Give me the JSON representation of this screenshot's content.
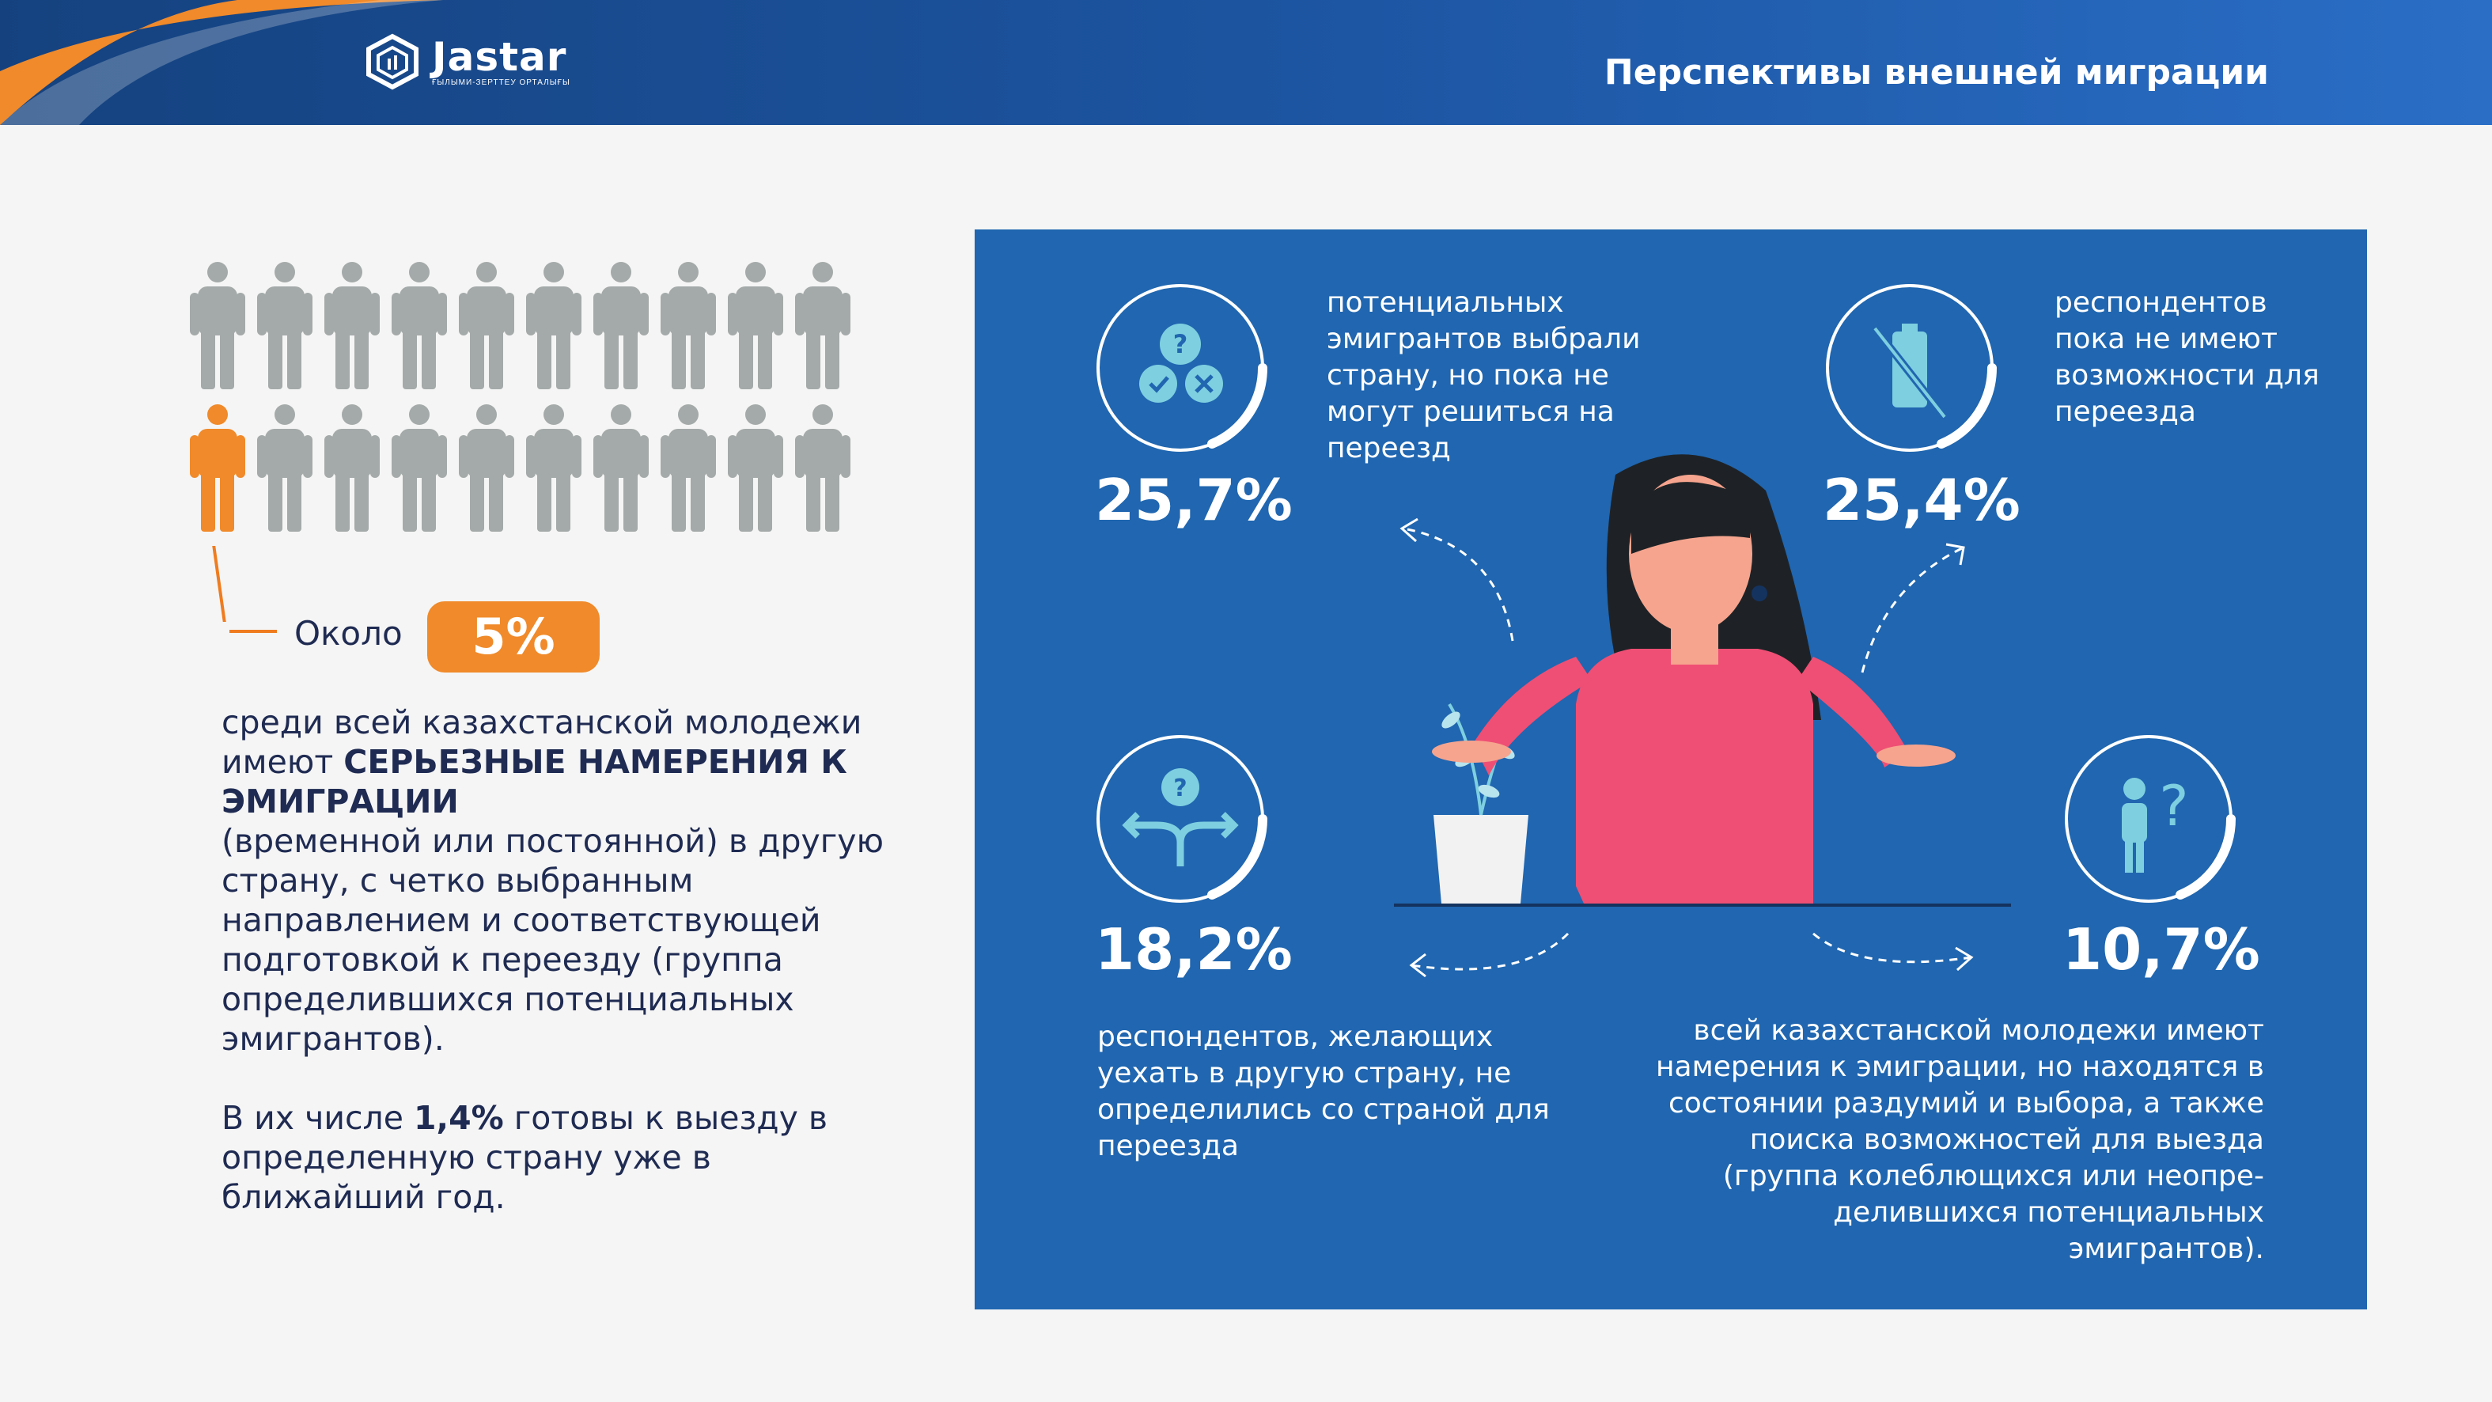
{
  "header": {
    "brand": "Jastar",
    "brand_sub": "ҒЫЛЫМИ-ЗЕРТТЕУ ОРТАЛЫҒЫ",
    "title": "Перспективы внешней миграции"
  },
  "left": {
    "okolo": "Около",
    "badge": "5%",
    "p1_a": "среди всей казахстанской молодежи имеют ",
    "p1_strong": "СЕРЬЕЗНЫЕ НАМЕРЕНИЯ К ЭМИГРАЦИИ",
    "p1_b": "(временной или постоянной) в другую страну, с четко выбранным направлением и соответствующей подготовкой к переезду (группа определившихся потенциальных эмигрантов).",
    "p2_a": "В их числе ",
    "p2_strong": "1,4%",
    "p2_b": " готовы к выезду в определенную страну уже в ближайший год."
  },
  "stats": [
    {
      "pct": "25,7%",
      "text": "потенциальных эмигрантов выбрали страну, но пока не могут решиться на переезд",
      "icon": "question-check-cross-icon"
    },
    {
      "pct": "25,4%",
      "text": "респондентов пока не имеют возможности для переезда",
      "icon": "empty-battery-icon"
    },
    {
      "pct": "18,2%",
      "text": "респондентов, желающих уехать в другую страну, не определились со страной для переезда",
      "icon": "crossroads-question-icon"
    },
    {
      "pct": "10,7%",
      "text": "всей казахстанской молодежи имеют намерения к эмиграции, но находятся в состоянии раздумий и выбора, а также поиска возможностей для выезда (группа колеблющихся или неопре-делившихся потенциальных эмигрантов).",
      "icon": "thinking-person-icon"
    }
  ],
  "colors": {
    "accent": "#f08a2a",
    "panel": "#2066b0",
    "header": "#1a4d94",
    "person_gray": "#a4aaa9",
    "text_dark": "#1f2b52"
  }
}
